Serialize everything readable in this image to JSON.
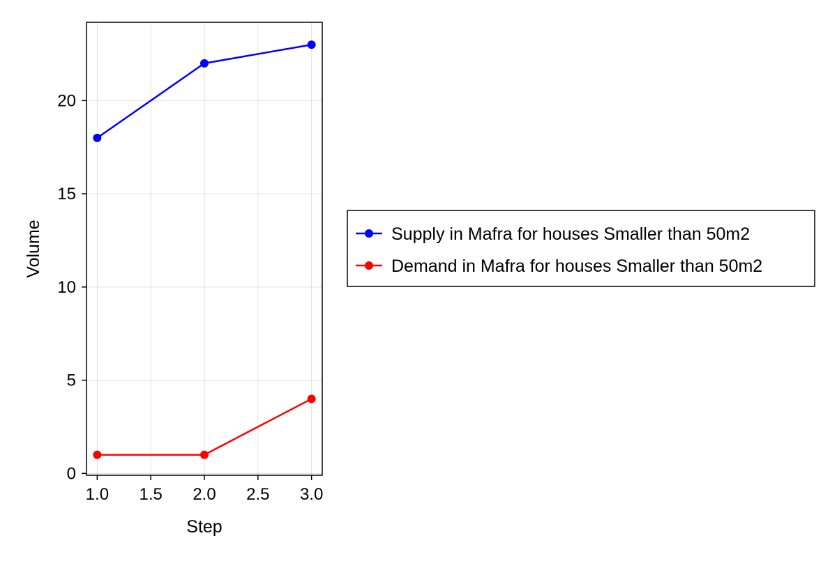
{
  "chart_data": {
    "type": "line",
    "title": "",
    "xlabel": "Step",
    "ylabel": "Volume",
    "xlim": [
      0.9,
      3.1
    ],
    "ylim": [
      -0.1,
      24.2
    ],
    "xticks": [
      1.0,
      1.5,
      2.0,
      2.5,
      3.0
    ],
    "xtick_labels": [
      "1.0",
      "1.5",
      "2.0",
      "2.5",
      "3.0"
    ],
    "yticks": [
      0,
      5,
      10,
      15,
      20
    ],
    "ytick_labels": [
      "0",
      "5",
      "10",
      "15",
      "20"
    ],
    "grid": true,
    "legend_position": "right",
    "series": [
      {
        "name": "Supply in Mafra for houses Smaller than 50m2",
        "color": "#0000ff",
        "x": [
          1.0,
          2.0,
          3.0
        ],
        "y": [
          18,
          22,
          23
        ]
      },
      {
        "name": "Demand in Mafra for houses Smaller than 50m2",
        "color": "#ff0000",
        "x": [
          1.0,
          2.0,
          3.0
        ],
        "y": [
          1,
          1,
          4
        ]
      }
    ]
  }
}
